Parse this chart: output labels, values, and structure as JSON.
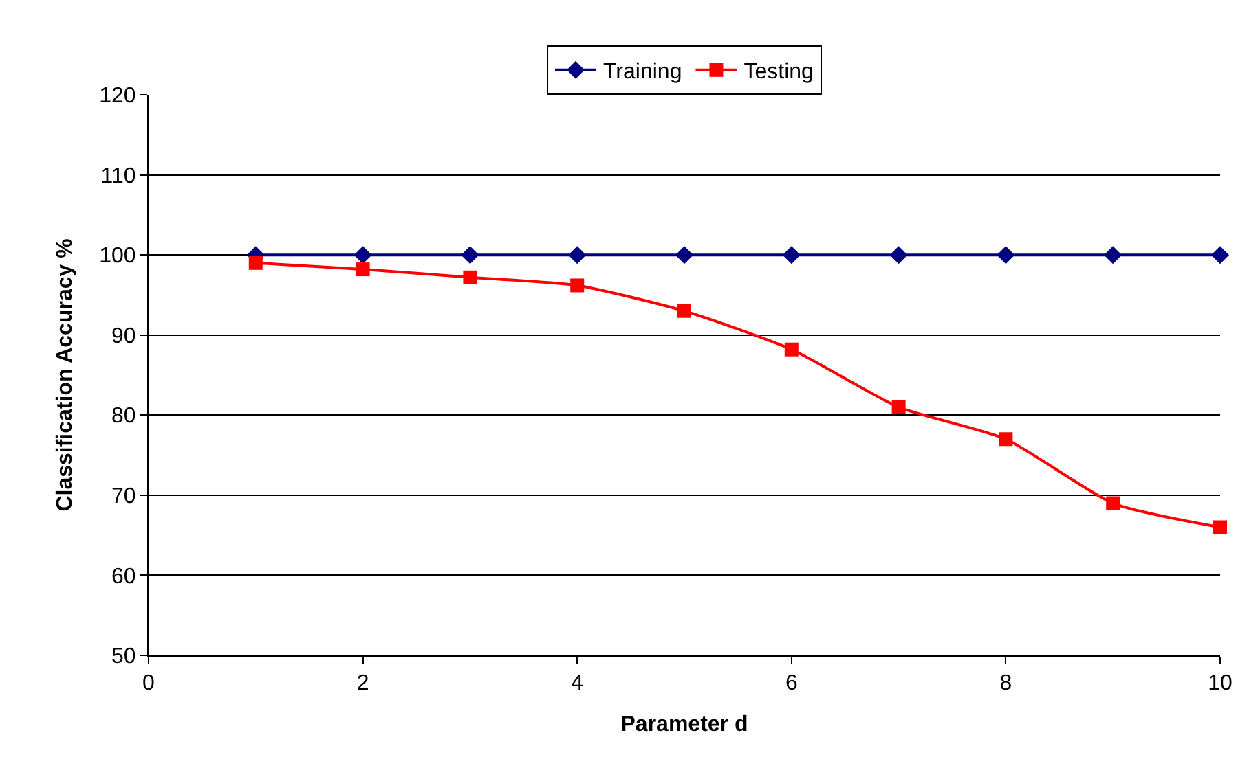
{
  "chart_data": {
    "type": "line",
    "xlabel": "Parameter d",
    "ylabel": "Classification Accuracy %",
    "x": [
      1,
      2,
      3,
      4,
      5,
      6,
      7,
      8,
      9,
      10
    ],
    "series": [
      {
        "name": "Training",
        "color": "#000080",
        "marker": "diamond",
        "values": [
          100,
          100,
          100,
          100,
          100,
          100,
          100,
          100,
          100,
          100
        ]
      },
      {
        "name": "Testing",
        "color": "#ff0000",
        "marker": "square",
        "values": [
          99,
          98.2,
          97.2,
          96.2,
          93,
          88.2,
          81,
          77,
          69,
          66
        ]
      }
    ],
    "xlim": [
      0,
      10
    ],
    "xticks": [
      0,
      2,
      4,
      6,
      8,
      10
    ],
    "ylim": [
      50,
      120
    ],
    "yticks": [
      50,
      60,
      70,
      80,
      90,
      100,
      110,
      120
    ],
    "grid": "y",
    "legend": "top",
    "line_style": "solid"
  }
}
